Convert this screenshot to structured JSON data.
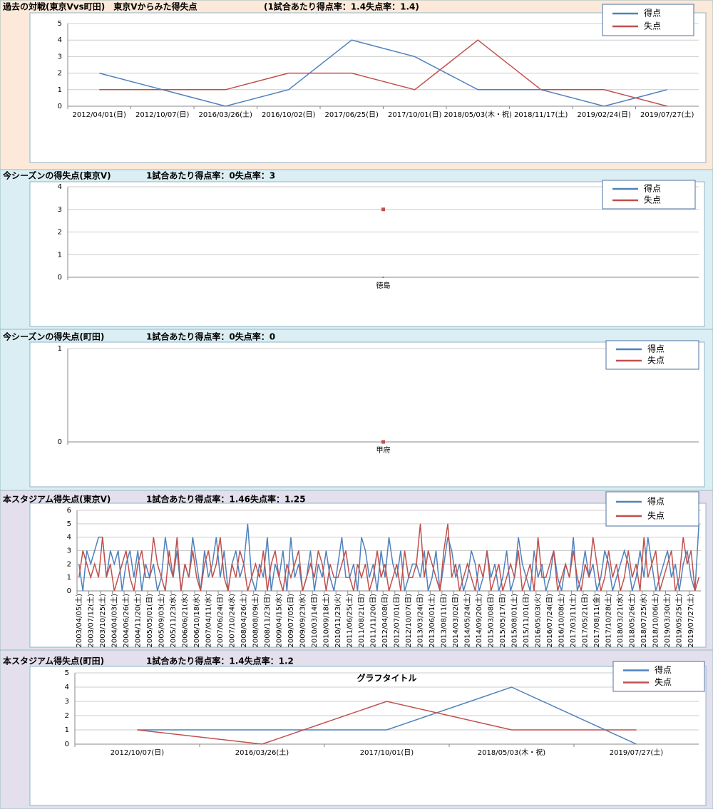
{
  "chart_data": [
    {
      "type": "line",
      "title": "過去の対戦(東京Vvs町田)　東京Vからみた得失点",
      "subtitle": "(1試合あたり得点率：1.4失点率：1.4)",
      "categories": [
        "2012/04/01(日)",
        "2012/10/07(日)",
        "2016/03/26(土)",
        "2016/10/02(日)",
        "2017/06/25(日)",
        "2017/10/01(日)",
        "2018/05/03(木・祝)",
        "2018/11/17(土)",
        "2019/02/24(日)",
        "2019/07/27(土)"
      ],
      "series": [
        {
          "name": "得点",
          "color": "#4f81bd",
          "values": [
            2,
            1,
            0,
            1,
            4,
            3,
            1,
            1,
            0,
            1
          ]
        },
        {
          "name": "失点",
          "color": "#c0504d",
          "values": [
            1,
            1,
            1,
            2,
            2,
            1,
            4,
            1,
            1,
            0
          ]
        }
      ],
      "ylim": [
        0,
        5
      ],
      "yticks": [
        0,
        1,
        2,
        3,
        4,
        5
      ],
      "grid": true,
      "legend": "top-right"
    },
    {
      "type": "line",
      "title": "今シーズンの得失点(東京V)",
      "subtitle": "1試合あたり得点率：0失点率：3",
      "categories": [
        "徳島"
      ],
      "series": [
        {
          "name": "得点",
          "color": "#4f81bd",
          "values": [
            0
          ]
        },
        {
          "name": "失点",
          "color": "#c0504d",
          "values": [
            3
          ]
        }
      ],
      "ylim": [
        0,
        4
      ],
      "yticks": [
        0,
        1,
        2,
        3,
        4
      ],
      "grid": true,
      "legend": "top-right"
    },
    {
      "type": "line",
      "title": "今シーズンの得失点(町田)",
      "subtitle": "1試合あたり得点率：0失点率：0",
      "categories": [
        "甲府"
      ],
      "series": [
        {
          "name": "得点",
          "color": "#4f81bd",
          "values": [
            0
          ]
        },
        {
          "name": "失点",
          "color": "#c0504d",
          "values": [
            0
          ]
        }
      ],
      "ylim": [
        0,
        1
      ],
      "yticks": [
        0,
        1
      ],
      "grid": true,
      "legend": "top-right"
    },
    {
      "type": "line",
      "title": "本スタジアム得失点(東京V)",
      "subtitle": "1試合あたり得点率：1.46失点率：1.25",
      "categories": [
        "2003/04/05(土)",
        null,
        null,
        "2003/07/12(土)",
        null,
        null,
        "2003/10/25(土)",
        null,
        null,
        "2004/04/03(土)",
        null,
        null,
        "2004/06/26(土)",
        null,
        null,
        "2004/11/20(土)",
        null,
        null,
        "2005/05/01(日)",
        null,
        null,
        "2005/09/03(土)",
        null,
        null,
        "2005/11/23(水)",
        null,
        null,
        "2006/06/21(水)",
        null,
        null,
        "2006/10/18(水)",
        null,
        null,
        "2007/04/11(水)",
        null,
        null,
        "2007/06/24(日)",
        null,
        null,
        "2007/10/24(水)",
        null,
        null,
        "2008/04/26(土)",
        null,
        null,
        "2008/08/09(土)",
        null,
        null,
        "2008/11/23(日)",
        null,
        null,
        "2009/04/15(水)",
        null,
        null,
        "2009/07/05(日)",
        null,
        null,
        "2009/09/23(水)",
        null,
        null,
        "2010/03/14(日)",
        null,
        null,
        "2010/09/18(土)",
        null,
        null,
        "2010/11/23(火)",
        null,
        null,
        "2011/06/25(土)",
        null,
        null,
        "2011/08/21(日)",
        null,
        null,
        "2011/11/20(日)",
        null,
        null,
        "2012/04/08(日)",
        null,
        null,
        "2012/07/01(日)",
        null,
        null,
        "2012/10/07(日)",
        null,
        null,
        "2013/03/24(日)",
        null,
        null,
        "2013/06/01(土)",
        null,
        null,
        "2013/08/11(日)",
        null,
        null,
        "2014/03/02(日)",
        null,
        null,
        "2014/05/24(土)",
        null,
        null,
        "2014/09/20(土)",
        null,
        null,
        "2015/03/08(日)",
        null,
        null,
        "2015/05/17(日)",
        null,
        null,
        "2015/08/01(土)",
        null,
        null,
        "2015/11/01(日)",
        null,
        null,
        "2016/05/03(火)",
        null,
        null,
        "2016/07/24(日)",
        null,
        null,
        "2016/10/08(土)",
        null,
        null,
        "2017/03/11(土)",
        null,
        null,
        "2017/05/21(日)",
        null,
        null,
        "2017/08/11(金)",
        null,
        null,
        "2017/10/28(土)",
        null,
        null,
        "2018/03/21(水)",
        null,
        null,
        "2018/05/26(土)",
        null,
        null,
        "2018/07/25(水)",
        null,
        null,
        "2018/10/06(土)",
        null,
        null,
        "2019/03/30(土)",
        null,
        null,
        "2019/05/25(土)",
        null,
        null,
        "2019/07/27(土)",
        null,
        null
      ],
      "series": [
        {
          "name": "得点",
          "color": "#4f81bd",
          "values": [
            2,
            0,
            3,
            2,
            3,
            4,
            4,
            1,
            3,
            2,
            3,
            0,
            2,
            3,
            1,
            3,
            0,
            2,
            1,
            2,
            0,
            1,
            4,
            2,
            1,
            3,
            0,
            2,
            1,
            4,
            2,
            0,
            3,
            1,
            2,
            4,
            1,
            3,
            0,
            2,
            3,
            1,
            2,
            5,
            1,
            0,
            2,
            1,
            4,
            0,
            2,
            1,
            3,
            0,
            4,
            1,
            2,
            0,
            1,
            3,
            0,
            2,
            1,
            3,
            1,
            0,
            2,
            4,
            1,
            1,
            2,
            0,
            4,
            3,
            1,
            2,
            0,
            3,
            1,
            4,
            2,
            1,
            3,
            0,
            1,
            2,
            2,
            1,
            3,
            0,
            1,
            3,
            0,
            2,
            4,
            3,
            1,
            2,
            0,
            1,
            3,
            2,
            0,
            1,
            3,
            1,
            2,
            0,
            1,
            3,
            0,
            1,
            4,
            2,
            1,
            0,
            3,
            1,
            2,
            0,
            1,
            3,
            1,
            0,
            2,
            1,
            4,
            0,
            1,
            3,
            1,
            2,
            0,
            1,
            3,
            2,
            0,
            1,
            2,
            3,
            2,
            0,
            1,
            3,
            1,
            4,
            2,
            0,
            1,
            2,
            3,
            1,
            2,
            0,
            2,
            3,
            1,
            0,
            5
          ]
        },
        {
          "name": "失点",
          "color": "#c0504d",
          "values": [
            1,
            3,
            2,
            1,
            2,
            1,
            4,
            1,
            2,
            0,
            1,
            2,
            3,
            1,
            0,
            2,
            3,
            1,
            1,
            4,
            2,
            1,
            0,
            3,
            1,
            4,
            0,
            2,
            1,
            3,
            1,
            0,
            2,
            3,
            1,
            2,
            4,
            1,
            0,
            2,
            1,
            3,
            2,
            0,
            1,
            2,
            1,
            3,
            0,
            2,
            3,
            1,
            0,
            2,
            1,
            2,
            3,
            0,
            1,
            2,
            1,
            3,
            2,
            0,
            2,
            1,
            1,
            2,
            3,
            1,
            0,
            2,
            1,
            2,
            0,
            1,
            3,
            1,
            2,
            0,
            1,
            2,
            0,
            3,
            1,
            1,
            2,
            5,
            1,
            3,
            2,
            1,
            0,
            3,
            5,
            1,
            2,
            0,
            1,
            2,
            1,
            0,
            2,
            1,
            3,
            0,
            1,
            2,
            0,
            1,
            2,
            1,
            3,
            0,
            1,
            2,
            0,
            4,
            1,
            1,
            2,
            3,
            0,
            1,
            2,
            1,
            3,
            1,
            0,
            2,
            1,
            4,
            2,
            0,
            1,
            3,
            1,
            2,
            0,
            1,
            3,
            1,
            2,
            0,
            4,
            1,
            2,
            3,
            0,
            1,
            2,
            3,
            0,
            1,
            4,
            2,
            3,
            0,
            1
          ]
        }
      ],
      "ylim": [
        0,
        6
      ],
      "yticks": [
        0,
        1,
        2,
        3,
        4,
        5,
        6
      ],
      "grid": true,
      "legend": "top-right"
    },
    {
      "type": "line",
      "title": "本スタジアム得失点(町田)",
      "subtitle": "1試合あたり得点率：1.4失点率：1.2",
      "chart_title": "グラフタイトル",
      "categories": [
        "2012/10/07(日)",
        "2016/03/26(土)",
        "2017/10/01(日)",
        "2018/05/03(木・祝)",
        "2019/07/27(土)"
      ],
      "series": [
        {
          "name": "得点",
          "color": "#4f81bd",
          "values": [
            1,
            1,
            1,
            4,
            0
          ]
        },
        {
          "name": "失点",
          "color": "#c0504d",
          "values": [
            1,
            0,
            3,
            1,
            1
          ]
        }
      ],
      "ylim": [
        0,
        5
      ],
      "yticks": [
        0,
        1,
        2,
        3,
        4,
        5
      ],
      "grid": true,
      "legend": "top-right"
    }
  ]
}
